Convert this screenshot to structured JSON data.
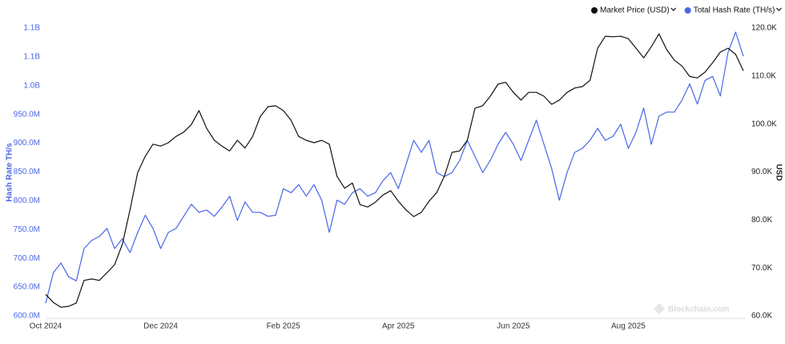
{
  "chart_data": {
    "type": "line",
    "legend_position": "top-right",
    "grid": false,
    "y_label": "Hash Rate TH/s",
    "y2_label": "USD",
    "watermark": "Blockchain.com",
    "categories": [
      "Oct 2024",
      null,
      null,
      null,
      null,
      null,
      null,
      null,
      null,
      null,
      null,
      null,
      null,
      null,
      null,
      "Dec 2024",
      null,
      null,
      null,
      null,
      null,
      null,
      null,
      null,
      null,
      null,
      null,
      null,
      null,
      null,
      null,
      "Feb 2025",
      null,
      null,
      null,
      null,
      null,
      null,
      null,
      null,
      null,
      null,
      null,
      null,
      null,
      null,
      "Apr 2025",
      null,
      null,
      null,
      null,
      null,
      null,
      null,
      null,
      null,
      null,
      null,
      null,
      null,
      null,
      "Jun 2025",
      null,
      null,
      null,
      null,
      null,
      null,
      null,
      null,
      null,
      null,
      null,
      null,
      null,
      null,
      "Aug 2025",
      null,
      null,
      null,
      null,
      null,
      null,
      null,
      null,
      null,
      null,
      null,
      null,
      null,
      null,
      null
    ],
    "ylim": [
      600000000,
      1100000000
    ],
    "yticks": [
      {
        "value": 600000000,
        "label": "600.0M"
      },
      {
        "value": 650000000,
        "label": "650.0M"
      },
      {
        "value": 700000000,
        "label": "700.0M"
      },
      {
        "value": 750000000,
        "label": "750.0M"
      },
      {
        "value": 800000000,
        "label": "800.0M"
      },
      {
        "value": 850000000,
        "label": "850.0M"
      },
      {
        "value": 900000000,
        "label": "900.0M"
      },
      {
        "value": 950000000,
        "label": "950.0M"
      },
      {
        "value": 1000000000,
        "label": "1.0B"
      },
      {
        "value": 1050000000,
        "label": "1.1B"
      },
      {
        "value": 1100000000,
        "label": "1.1B"
      }
    ],
    "y2lim": [
      60000,
      120000
    ],
    "y2ticks": [
      {
        "value": 60000,
        "label": "60.0K"
      },
      {
        "value": 70000,
        "label": "70.0K"
      },
      {
        "value": 80000,
        "label": "80.0K"
      },
      {
        "value": 90000,
        "label": "90.0K"
      },
      {
        "value": 100000,
        "label": "100.0K"
      },
      {
        "value": 110000,
        "label": "110.0K"
      },
      {
        "value": 120000,
        "label": "120.0K"
      }
    ],
    "series": [
      {
        "name": "Market Price (USD)",
        "color": "#111111",
        "axis": "y2",
        "values": [
          64500,
          62800,
          61800,
          62000,
          62700,
          67400,
          67700,
          67400,
          69000,
          70700,
          74900,
          82100,
          89900,
          93300,
          95800,
          95400,
          96100,
          97400,
          98300,
          99900,
          102800,
          99100,
          96600,
          95400,
          94400,
          96600,
          95000,
          97400,
          101600,
          103600,
          103800,
          102800,
          100800,
          97400,
          96600,
          96100,
          96600,
          95800,
          89100,
          86600,
          87700,
          83200,
          82700,
          83700,
          85200,
          86100,
          83900,
          82100,
          80700,
          81600,
          83900,
          85700,
          89100,
          94100,
          94400,
          96600,
          103300,
          103800,
          105800,
          108300,
          108700,
          106600,
          105000,
          106600,
          106600,
          105800,
          104100,
          105000,
          106600,
          107500,
          107800,
          109100,
          115800,
          118300,
          118200,
          118300,
          117800,
          115800,
          113800,
          116100,
          118800,
          115500,
          113300,
          112100,
          109900,
          109600,
          110800,
          112800,
          115000,
          115800,
          114500,
          111100
        ]
      },
      {
        "name": "Total Hash Rate (TH/s)",
        "color": "#4a66e8",
        "axis": "y",
        "values": [
          622000000,
          675000000,
          692000000,
          668000000,
          661000000,
          717000000,
          731000000,
          738000000,
          752000000,
          717000000,
          734000000,
          710000000,
          745000000,
          775000000,
          752000000,
          717000000,
          745000000,
          752000000,
          773000000,
          794000000,
          780000000,
          784000000,
          773000000,
          789000000,
          808000000,
          766000000,
          798000000,
          780000000,
          780000000,
          773000000,
          775000000,
          821000000,
          814000000,
          828000000,
          808000000,
          828000000,
          801000000,
          745000000,
          801000000,
          794000000,
          814000000,
          821000000,
          808000000,
          814000000,
          835000000,
          849000000,
          821000000,
          863000000,
          905000000,
          884000000,
          905000000,
          849000000,
          842000000,
          849000000,
          870000000,
          905000000,
          877000000,
          849000000,
          870000000,
          898000000,
          919000000,
          898000000,
          870000000,
          905000000,
          940000000,
          898000000,
          856000000,
          801000000,
          849000000,
          884000000,
          891000000,
          905000000,
          926000000,
          905000000,
          912000000,
          933000000,
          891000000,
          919000000,
          961000000,
          898000000,
          947000000,
          954000000,
          954000000,
          975000000,
          1003000000,
          968000000,
          1009000000,
          1016000000,
          982000000,
          1058000000,
          1093000000,
          1051000000
        ]
      }
    ]
  }
}
